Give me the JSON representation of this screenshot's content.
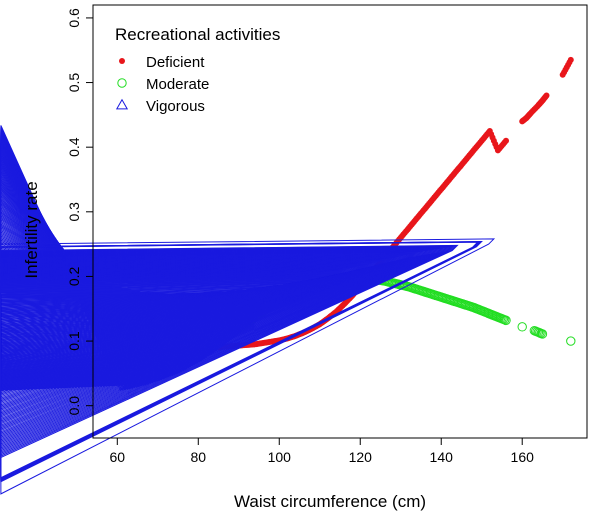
{
  "chart_data": {
    "type": "scatter",
    "title": "",
    "xlabel": "Waist circumference (cm)",
    "ylabel": "Infertility rate",
    "xlim": [
      54,
      176
    ],
    "ylim": [
      -0.05,
      0.62
    ],
    "xticks": [
      60,
      80,
      100,
      120,
      140,
      160
    ],
    "yticks": [
      0.0,
      0.1,
      0.2,
      0.3,
      0.4,
      0.5,
      0.6
    ],
    "xtick_labels": [
      "60",
      "80",
      "100",
      "120",
      "140",
      "160"
    ],
    "ytick_labels": [
      "0.0",
      "0.1",
      "0.2",
      "0.3",
      "0.4",
      "0.5",
      "0.6"
    ],
    "legend": {
      "title": "Recreational activities",
      "position": "top-left",
      "entries": [
        "Deficient",
        "Moderate",
        "Vigorous"
      ]
    },
    "series": [
      {
        "name": "Deficient",
        "marker": "filled-circle",
        "color": "#e8161b",
        "x": [
          56,
          58,
          60,
          62,
          64,
          66,
          68,
          70,
          72,
          74,
          76,
          78,
          80,
          82,
          84,
          86,
          88,
          90,
          92,
          94,
          96,
          98,
          100,
          102,
          104,
          106,
          108,
          110,
          112,
          114,
          116,
          118,
          120,
          122,
          124,
          126,
          128,
          130,
          132,
          134,
          136,
          138,
          140,
          142,
          144,
          146,
          148,
          150,
          152,
          154,
          156,
          160,
          161,
          162,
          164,
          165,
          166,
          170,
          172
        ],
        "values": [
          0.075,
          0.077,
          0.078,
          0.079,
          0.08,
          0.081,
          0.082,
          0.083,
          0.084,
          0.085,
          0.086,
          0.087,
          0.088,
          0.089,
          0.09,
          0.091,
          0.092,
          0.093,
          0.094,
          0.095,
          0.097,
          0.099,
          0.101,
          0.104,
          0.108,
          0.113,
          0.119,
          0.126,
          0.135,
          0.145,
          0.157,
          0.17,
          0.185,
          0.2,
          0.215,
          0.23,
          0.245,
          0.26,
          0.275,
          0.29,
          0.305,
          0.32,
          0.335,
          0.35,
          0.365,
          0.38,
          0.395,
          0.41,
          0.425,
          0.395,
          0.41,
          0.44,
          0.445,
          0.452,
          0.465,
          0.472,
          0.48,
          0.512,
          0.535
        ]
      },
      {
        "name": "Moderate",
        "marker": "open-circle",
        "color": "#22dd22",
        "x": [
          63,
          64,
          66,
          68,
          70,
          72,
          74,
          76,
          78,
          80,
          82,
          84,
          86,
          88,
          90,
          92,
          94,
          96,
          98,
          100,
          102,
          104,
          106,
          108,
          110,
          112,
          114,
          116,
          118,
          120,
          122,
          124,
          126,
          128,
          130,
          132,
          134,
          136,
          138,
          140,
          142,
          144,
          146,
          148,
          150,
          152,
          154,
          156,
          160,
          163,
          165,
          172
        ],
        "values": [
          0.043,
          0.044,
          0.047,
          0.05,
          0.054,
          0.058,
          0.063,
          0.068,
          0.074,
          0.08,
          0.087,
          0.094,
          0.102,
          0.11,
          0.119,
          0.128,
          0.137,
          0.146,
          0.155,
          0.163,
          0.171,
          0.178,
          0.184,
          0.189,
          0.193,
          0.196,
          0.198,
          0.199,
          0.199,
          0.198,
          0.197,
          0.195,
          0.193,
          0.19,
          0.187,
          0.184,
          0.18,
          0.176,
          0.172,
          0.168,
          0.164,
          0.16,
          0.156,
          0.152,
          0.147,
          0.142,
          0.137,
          0.132,
          0.122,
          0.116,
          0.111,
          0.1
        ]
      },
      {
        "name": "Vigorous",
        "marker": "open-triangle",
        "color": "#1a1adf",
        "x": [
          62,
          64,
          66,
          68,
          70,
          72,
          74,
          76,
          78,
          80,
          82,
          84,
          86,
          88,
          90,
          92,
          94,
          96,
          98,
          100,
          102,
          104,
          106,
          108,
          110,
          112,
          114,
          116,
          118,
          120,
          122,
          124,
          126,
          128,
          130,
          132,
          134,
          136,
          138,
          140,
          142,
          144,
          149,
          150,
          153
        ],
        "values": [
          0.024,
          0.026,
          0.029,
          0.032,
          0.036,
          0.04,
          0.045,
          0.05,
          0.056,
          0.063,
          0.07,
          0.078,
          0.087,
          0.096,
          0.106,
          0.116,
          0.126,
          0.137,
          0.147,
          0.157,
          0.166,
          0.174,
          0.181,
          0.187,
          0.192,
          0.196,
          0.2,
          0.203,
          0.206,
          0.209,
          0.212,
          0.215,
          0.218,
          0.221,
          0.224,
          0.227,
          0.23,
          0.232,
          0.234,
          0.236,
          0.238,
          0.24,
          0.245,
          0.246,
          0.25
        ]
      }
    ]
  }
}
